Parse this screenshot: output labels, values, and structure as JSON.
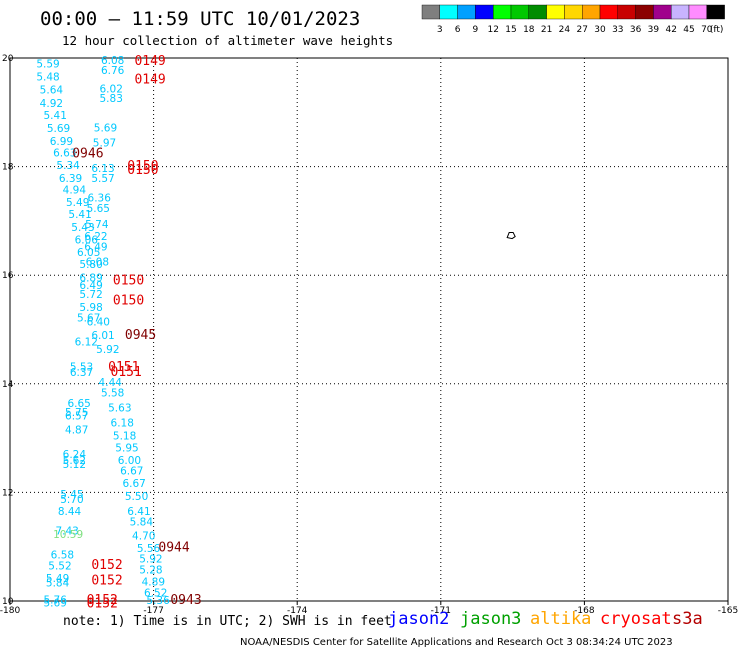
{
  "header": {
    "title": "00:00 – 11:59 UTC 10/01/2023",
    "subtitle": "12 hour collection of altimeter wave heights"
  },
  "colorbar": {
    "labels": [
      "3",
      "6",
      "9",
      "12",
      "15",
      "18",
      "21",
      "24",
      "27",
      "30",
      "33",
      "36",
      "39",
      "42",
      "45",
      "70",
      "(ft)"
    ],
    "colors": [
      "#7f7f7f",
      "#00ffff",
      "#00a0ff",
      "#0000ff",
      "#00ff00",
      "#00c800",
      "#008c00",
      "#ffff00",
      "#ffd700",
      "#ffa500",
      "#ff0000",
      "#c80000",
      "#8b0000",
      "#a0008c",
      "#c8b4ff",
      "#ff8cff",
      "#000000"
    ]
  },
  "map": {
    "x_ticks": [
      "-180",
      "-177",
      "-174",
      "-171",
      "-168",
      "-165"
    ],
    "y_ticks": [
      "20",
      "18",
      "16",
      "14",
      "12",
      "10"
    ]
  },
  "footer": {
    "note": "note: 1) Time is in UTC; 2) SWH is in feet",
    "credit": "NOAA/NESDIS Center for Satellite Applications and Research    Oct  3 08:34:24 UTC 2023",
    "satellites": [
      {
        "name": "jason2",
        "color": "#0000ff"
      },
      {
        "name": "jason3",
        "color": "#00a000"
      },
      {
        "name": "altika",
        "color": "#ffa500"
      },
      {
        "name": "cryosat",
        "color": "#ff0000"
      },
      {
        "name": "s3a",
        "color": "#b40000"
      }
    ]
  },
  "chart_data": {
    "type": "scatter",
    "title": "00:00 – 11:59 UTC 10/01/2023",
    "subtitle": "12 hour collection of altimeter wave heights",
    "xlim": [
      -180,
      -165
    ],
    "ylim": [
      10,
      20
    ],
    "grid": true,
    "x_tick_labels": [
      "-180",
      "-177",
      "-174",
      "-171",
      "-168",
      "-165"
    ],
    "y_tick_labels": [
      "20",
      "18",
      "16",
      "14",
      "12",
      "10"
    ],
    "observations": [
      {
        "lon": -179.45,
        "lat": 19.9,
        "swh": "5.59",
        "color": "#00c8ff"
      },
      {
        "lon": -179.45,
        "lat": 19.66,
        "swh": "5.48",
        "color": "#00c8ff"
      },
      {
        "lon": -179.38,
        "lat": 19.42,
        "swh": "5.64",
        "color": "#00c8ff"
      },
      {
        "lon": -179.38,
        "lat": 19.17,
        "swh": "4.92",
        "color": "#00c8ff"
      },
      {
        "lon": -179.3,
        "lat": 18.95,
        "swh": "5.41",
        "color": "#00c8ff"
      },
      {
        "lon": -179.23,
        "lat": 18.71,
        "swh": "5.69",
        "color": "#00c8ff"
      },
      {
        "lon": -179.17,
        "lat": 18.47,
        "swh": "6.99",
        "color": "#00c8ff"
      },
      {
        "lon": -179.1,
        "lat": 18.26,
        "swh": "6.63",
        "color": "#00c8ff"
      },
      {
        "lon": -179.03,
        "lat": 18.03,
        "swh": "5.34",
        "color": "#00c8ff"
      },
      {
        "lon": -178.98,
        "lat": 17.79,
        "swh": "6.39",
        "color": "#00c8ff"
      },
      {
        "lon": -178.9,
        "lat": 17.58,
        "swh": "4.94",
        "color": "#00c8ff"
      },
      {
        "lon": -178.83,
        "lat": 17.35,
        "swh": "5.49",
        "color": "#00c8ff"
      },
      {
        "lon": -178.78,
        "lat": 17.13,
        "swh": "5.41",
        "color": "#00c8ff"
      },
      {
        "lon": -178.72,
        "lat": 16.89,
        "swh": "5.43",
        "color": "#00c8ff"
      },
      {
        "lon": -178.65,
        "lat": 16.66,
        "swh": "6.06",
        "color": "#00c8ff"
      },
      {
        "lon": -178.6,
        "lat": 16.43,
        "swh": "6.05",
        "color": "#00c8ff"
      },
      {
        "lon": -178.55,
        "lat": 16.21,
        "swh": "5.80",
        "color": "#00c8ff"
      },
      {
        "lon": -178.1,
        "lat": 19.96,
        "swh": "6.08",
        "color": "#00c8ff"
      },
      {
        "lon": -178.1,
        "lat": 19.78,
        "swh": "6.76",
        "color": "#00c8ff"
      },
      {
        "lon": -178.13,
        "lat": 19.44,
        "swh": "6.02",
        "color": "#00c8ff"
      },
      {
        "lon": -178.13,
        "lat": 19.26,
        "swh": "5.83",
        "color": "#00c8ff"
      },
      {
        "lon": -178.25,
        "lat": 18.72,
        "swh": "5.69",
        "color": "#00c8ff"
      },
      {
        "lon": -178.27,
        "lat": 18.44,
        "swh": "5.97",
        "color": "#00c8ff"
      },
      {
        "lon": -178.3,
        "lat": 17.97,
        "swh": "6.13",
        "color": "#00c8ff"
      },
      {
        "lon": -178.3,
        "lat": 17.79,
        "swh": "5.57",
        "color": "#00c8ff"
      },
      {
        "lon": -178.38,
        "lat": 17.43,
        "swh": "6.36",
        "color": "#00c8ff"
      },
      {
        "lon": -178.4,
        "lat": 17.24,
        "swh": "5.65",
        "color": "#00c8ff"
      },
      {
        "lon": -178.43,
        "lat": 16.94,
        "swh": "5.74",
        "color": "#00c8ff"
      },
      {
        "lon": -178.45,
        "lat": 16.72,
        "swh": "6.22",
        "color": "#00c8ff"
      },
      {
        "lon": -178.45,
        "lat": 16.53,
        "swh": "6.49",
        "color": "#00c8ff"
      },
      {
        "lon": -178.42,
        "lat": 16.25,
        "swh": "6.08",
        "color": "#00c8ff"
      },
      {
        "lon": -178.55,
        "lat": 15.96,
        "swh": "6.89",
        "color": "#00c8ff"
      },
      {
        "lon": -178.55,
        "lat": 15.82,
        "swh": "6.49",
        "color": "#00c8ff"
      },
      {
        "lon": -178.55,
        "lat": 15.65,
        "swh": "5.72",
        "color": "#00c8ff"
      },
      {
        "lon": -178.55,
        "lat": 15.41,
        "swh": "5.98",
        "color": "#00c8ff"
      },
      {
        "lon": -178.6,
        "lat": 15.22,
        "swh": "5.67",
        "color": "#00c8ff"
      },
      {
        "lon": -178.4,
        "lat": 15.15,
        "swh": "6.40",
        "color": "#00c8ff"
      },
      {
        "lon": -178.3,
        "lat": 14.9,
        "swh": "6.01",
        "color": "#00c8ff"
      },
      {
        "lon": -178.65,
        "lat": 14.78,
        "swh": "6.12",
        "color": "#00c8ff"
      },
      {
        "lon": -178.2,
        "lat": 14.64,
        "swh": "5.92",
        "color": "#00c8ff"
      },
      {
        "lon": -178.75,
        "lat": 14.32,
        "swh": "5.53",
        "color": "#00c8ff"
      },
      {
        "lon": -178.75,
        "lat": 14.22,
        "swh": "6.37",
        "color": "#00c8ff"
      },
      {
        "lon": -178.15,
        "lat": 14.03,
        "swh": "4.44",
        "color": "#00c8ff"
      },
      {
        "lon": -178.1,
        "lat": 13.84,
        "swh": "5.58",
        "color": "#00c8ff"
      },
      {
        "lon": -178.8,
        "lat": 13.65,
        "swh": "6.65",
        "color": "#00c8ff"
      },
      {
        "lon": -178.85,
        "lat": 13.48,
        "swh": "5.75",
        "color": "#00c8ff"
      },
      {
        "lon": -178.85,
        "lat": 13.42,
        "swh": "6.57",
        "color": "#00c8ff"
      },
      {
        "lon": -177.95,
        "lat": 13.56,
        "swh": "5.63",
        "color": "#00c8ff"
      },
      {
        "lon": -177.9,
        "lat": 13.29,
        "swh": "6.18",
        "color": "#00c8ff"
      },
      {
        "lon": -178.85,
        "lat": 13.16,
        "swh": "4.87",
        "color": "#00c8ff"
      },
      {
        "lon": -177.85,
        "lat": 13.05,
        "swh": "5.18",
        "color": "#00c8ff"
      },
      {
        "lon": -177.8,
        "lat": 12.83,
        "swh": "5.95",
        "color": "#00c8ff"
      },
      {
        "lon": -178.9,
        "lat": 12.71,
        "swh": "6.24",
        "color": "#00c8ff"
      },
      {
        "lon": -178.9,
        "lat": 12.6,
        "swh": "5.62",
        "color": "#00c8ff"
      },
      {
        "lon": -177.75,
        "lat": 12.6,
        "swh": "6.00",
        "color": "#00c8ff"
      },
      {
        "lon": -178.9,
        "lat": 12.52,
        "swh": "5.12",
        "color": "#00c8ff"
      },
      {
        "lon": -177.7,
        "lat": 12.4,
        "swh": "6.67",
        "color": "#00c8ff"
      },
      {
        "lon": -177.65,
        "lat": 12.17,
        "swh": "6.67",
        "color": "#00c8ff"
      },
      {
        "lon": -178.95,
        "lat": 11.97,
        "swh": "5.45",
        "color": "#00c8ff"
      },
      {
        "lon": -178.95,
        "lat": 11.88,
        "swh": "5.70",
        "color": "#00c8ff"
      },
      {
        "lon": -177.6,
        "lat": 11.93,
        "swh": "5.50",
        "color": "#00c8ff"
      },
      {
        "lon": -179.0,
        "lat": 11.66,
        "swh": "8.44",
        "color": "#00c8ff"
      },
      {
        "lon": -177.55,
        "lat": 11.66,
        "swh": "6.41",
        "color": "#00c8ff"
      },
      {
        "lon": -177.5,
        "lat": 11.46,
        "swh": "5.84",
        "color": "#00c8ff"
      },
      {
        "lon": -179.05,
        "lat": 11.3,
        "swh": "7.43",
        "color": "#00c8ff"
      },
      {
        "lon": -179.1,
        "lat": 11.23,
        "swh": "10.59",
        "color": "#7ee080"
      },
      {
        "lon": -177.45,
        "lat": 11.21,
        "swh": "4.70",
        "color": "#00c8ff"
      },
      {
        "lon": -177.35,
        "lat": 10.98,
        "swh": "5.56",
        "color": "#00c8ff"
      },
      {
        "lon": -179.15,
        "lat": 10.86,
        "swh": "6.58",
        "color": "#00c8ff"
      },
      {
        "lon": -177.3,
        "lat": 10.78,
        "swh": "5.92",
        "color": "#00c8ff"
      },
      {
        "lon": -179.2,
        "lat": 10.65,
        "swh": "5.52",
        "color": "#00c8ff"
      },
      {
        "lon": -177.3,
        "lat": 10.58,
        "swh": "5.28",
        "color": "#00c8ff"
      },
      {
        "lon": -179.25,
        "lat": 10.42,
        "swh": "5.49",
        "color": "#00c8ff"
      },
      {
        "lon": -179.25,
        "lat": 10.34,
        "swh": "5.84",
        "color": "#00c8ff"
      },
      {
        "lon": -177.25,
        "lat": 10.36,
        "swh": "4.89",
        "color": "#00c8ff"
      },
      {
        "lon": -177.2,
        "lat": 10.16,
        "swh": "6.52",
        "color": "#00c8ff"
      },
      {
        "lon": -179.3,
        "lat": 10.03,
        "swh": "5.76",
        "color": "#00c8ff"
      },
      {
        "lon": -179.3,
        "lat": 9.97,
        "swh": "5.69",
        "color": "#00c8ff"
      },
      {
        "lon": -177.15,
        "lat": 10.02,
        "swh": "5.36",
        "color": "#00c8ff"
      }
    ],
    "pass_labels": [
      {
        "lon": -177.4,
        "lat": 19.96,
        "time": "0149",
        "color": "#e00000"
      },
      {
        "lon": -177.4,
        "lat": 19.62,
        "time": "0149",
        "color": "#e00000"
      },
      {
        "lon": -178.7,
        "lat": 18.26,
        "time": "0946",
        "color": "#800000"
      },
      {
        "lon": -177.55,
        "lat": 18.03,
        "time": "0150",
        "color": "#e00000"
      },
      {
        "lon": -177.55,
        "lat": 17.96,
        "time": "0150",
        "color": "#e00000"
      },
      {
        "lon": -177.85,
        "lat": 15.92,
        "time": "0150",
        "color": "#e00000"
      },
      {
        "lon": -177.85,
        "lat": 15.55,
        "time": "0150",
        "color": "#e00000"
      },
      {
        "lon": -177.6,
        "lat": 14.92,
        "time": "0945",
        "color": "#800000"
      },
      {
        "lon": -177.95,
        "lat": 14.33,
        "time": "0151",
        "color": "#e00000"
      },
      {
        "lon": -177.9,
        "lat": 14.24,
        "time": "0151",
        "color": "#e00000"
      },
      {
        "lon": -176.9,
        "lat": 11.0,
        "time": "0944",
        "color": "#800000"
      },
      {
        "lon": -178.3,
        "lat": 10.68,
        "time": "0152",
        "color": "#e00000"
      },
      {
        "lon": -178.3,
        "lat": 10.4,
        "time": "0152",
        "color": "#e00000"
      },
      {
        "lon": -176.65,
        "lat": 10.04,
        "time": "0943",
        "color": "#800000"
      },
      {
        "lon": -178.4,
        "lat": 10.04,
        "time": "0152",
        "color": "#e00000"
      },
      {
        "lon": -178.4,
        "lat": 9.97,
        "time": "0152",
        "color": "#e00000"
      }
    ],
    "land": [
      {
        "lon": -169.53,
        "lat": 16.73
      }
    ]
  }
}
